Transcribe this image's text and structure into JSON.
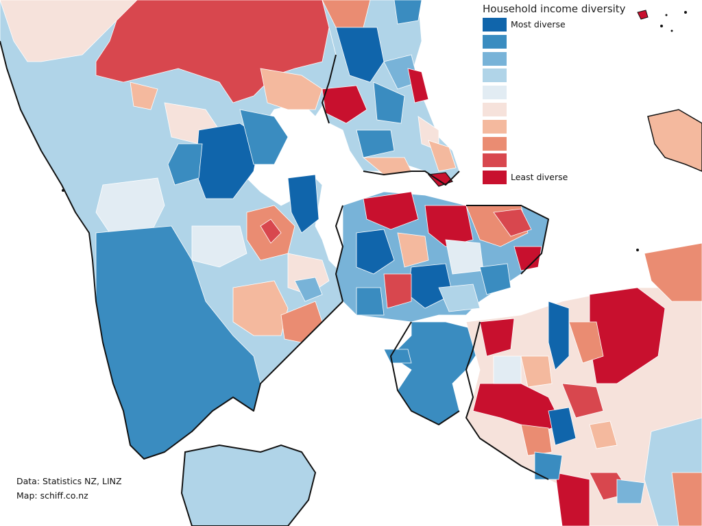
{
  "legend": {
    "title": "Household income diversity",
    "items": [
      {
        "label": "Most diverse",
        "color": "#1065ab"
      },
      {
        "label": "",
        "color": "#3a8cc0"
      },
      {
        "label": "",
        "color": "#78b3d8"
      },
      {
        "label": "",
        "color": "#b0d4e8"
      },
      {
        "label": "",
        "color": "#e2ecf3"
      },
      {
        "label": "",
        "color": "#f6e2db"
      },
      {
        "label": "",
        "color": "#f4b99e"
      },
      {
        "label": "",
        "color": "#ea8c72"
      },
      {
        "label": "",
        "color": "#d8474e"
      },
      {
        "label": "Least diverse",
        "color": "#c8102e"
      }
    ]
  },
  "credits": {
    "data": "Data: Statistics NZ, LINZ",
    "map": "Map: schiff.co.nz"
  }
}
